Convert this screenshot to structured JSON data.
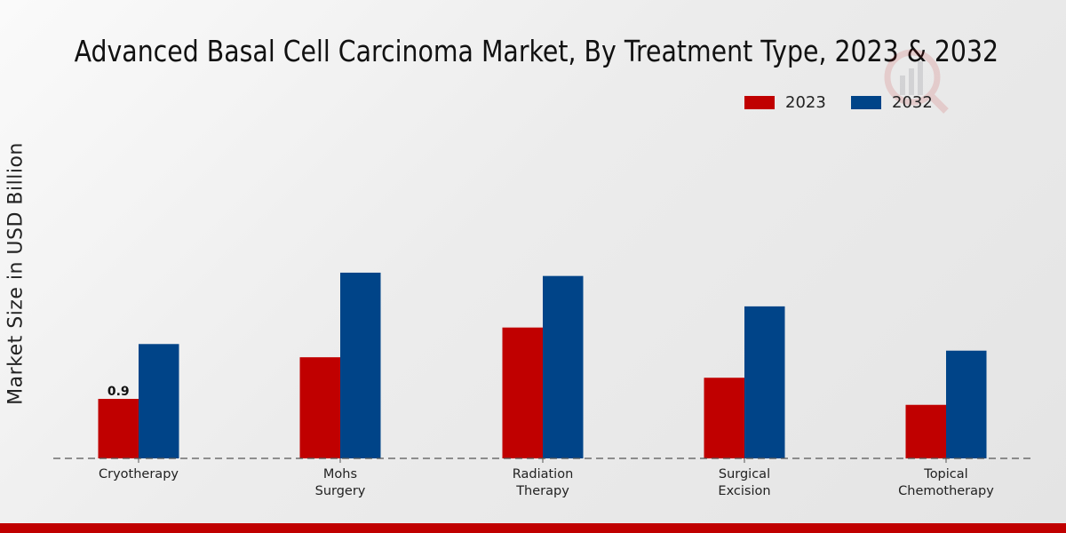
{
  "chart_data": {
    "type": "bar",
    "title": "Advanced Basal Cell Carcinoma Market, By Treatment Type, 2023 & 2032",
    "xlabel": "",
    "ylabel": "Market Size in USD Billion",
    "categories": [
      "Cryotherapy",
      "Mohs Surgery",
      "Radiation Therapy",
      "Surgical Excision",
      "Topical Chemotherapy"
    ],
    "category_lines": [
      [
        "Cryotherapy"
      ],
      [
        "Mohs",
        "Surgery"
      ],
      [
        "Radiation",
        "Therapy"
      ],
      [
        "Surgical",
        "Excision"
      ],
      [
        "Topical",
        "Chemotherapy"
      ]
    ],
    "series": [
      {
        "name": "2023",
        "color": "#c00000",
        "values": [
          0.9,
          1.53,
          1.98,
          1.22,
          0.81
        ]
      },
      {
        "name": "2032",
        "color": "#004488",
        "values": [
          1.73,
          2.81,
          2.76,
          2.3,
          1.63
        ]
      }
    ],
    "data_labels": [
      {
        "series": 0,
        "index": 0,
        "text": "0.9"
      }
    ],
    "ylim": [
      0,
      4.5
    ],
    "grid": false,
    "legend_position": "top-right",
    "baseline_style": "dashed"
  },
  "legend": {
    "items": [
      {
        "label": "2023",
        "color": "#c00000"
      },
      {
        "label": "2032",
        "color": "#004488"
      }
    ]
  },
  "footer": {
    "color": "#c00000"
  }
}
